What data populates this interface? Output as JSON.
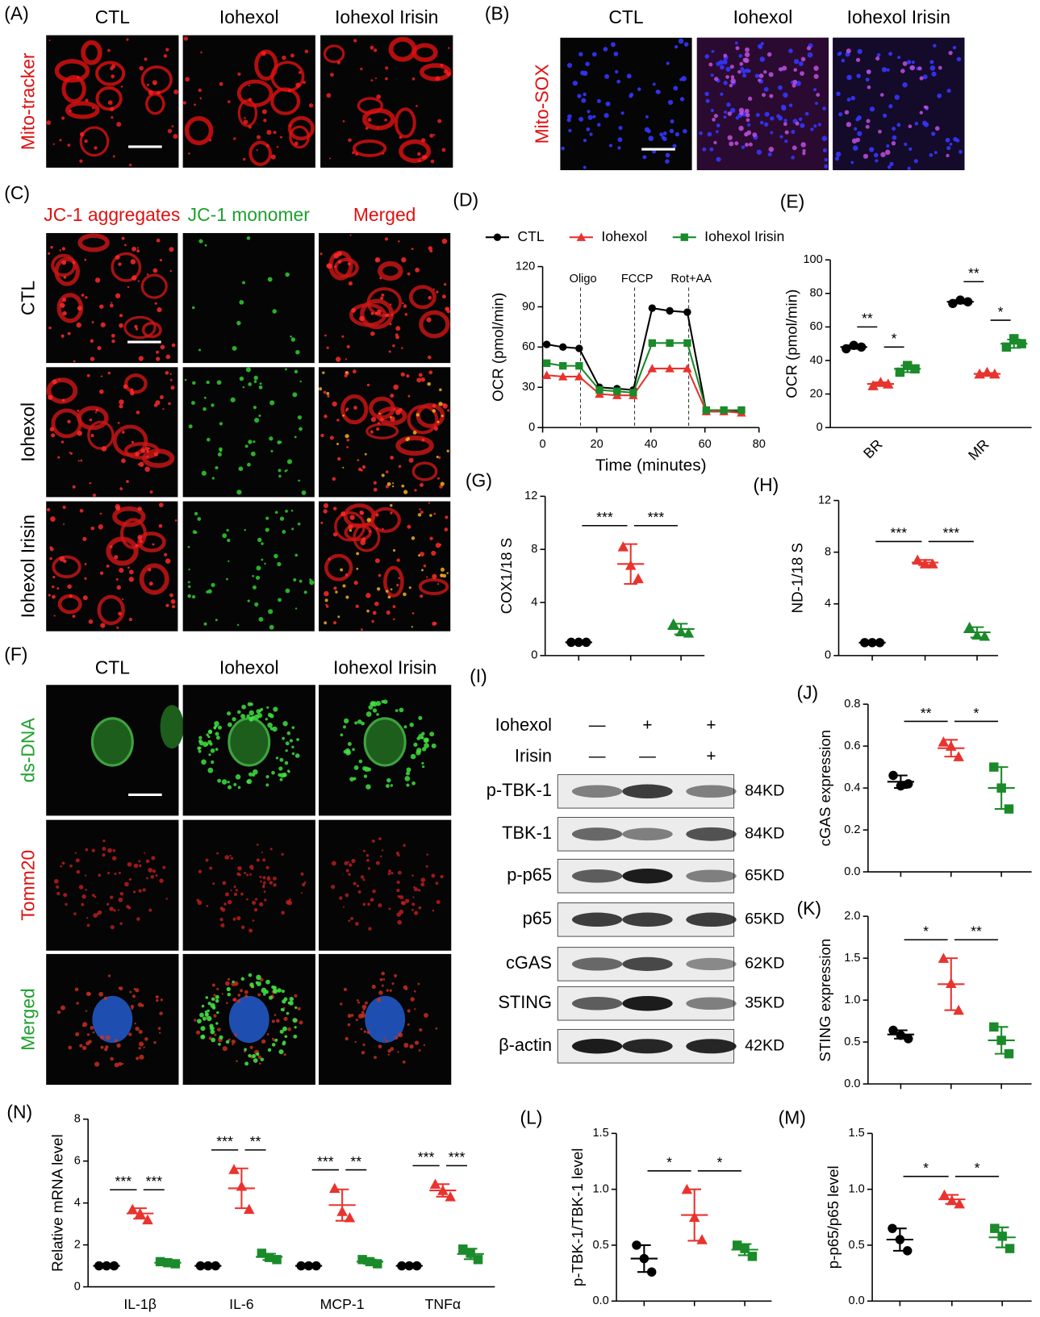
{
  "image_panels": [
    {
      "label": "(A)",
      "columns": [
        "CTL",
        "Iohexol",
        "Iohexol Irisin"
      ],
      "rows": [
        "Mito-tracker"
      ]
    },
    {
      "label": "(B)",
      "columns": [
        "CTL",
        "Iohexol",
        "Iohexol Irisin"
      ],
      "rows": [
        "Mito-SOX"
      ]
    },
    {
      "label": "(C)",
      "columns": [
        "JC-1 aggregates",
        "JC-1 monomer",
        "Merged"
      ],
      "rows": [
        "CTL",
        "Iohexol",
        "Iohexol Irisin"
      ]
    },
    {
      "label": "(F)",
      "columns": [
        "CTL",
        "Iohexol",
        "Iohexol Irisin"
      ],
      "rows": [
        "ds-DNA",
        "Tomm20",
        "Merged"
      ]
    }
  ],
  "western_blot": {
    "label": "(I)",
    "treatments": [
      {
        "name": "Iohexol",
        "lanes": [
          "—",
          "+",
          "+"
        ]
      },
      {
        "name": "Irisin",
        "lanes": [
          "—",
          "—",
          "+"
        ]
      }
    ],
    "bands": [
      {
        "name": "p-TBK-1",
        "size": "84KD"
      },
      {
        "name": "TBK-1",
        "size": "84KD"
      },
      {
        "name": "p-p65",
        "size": "65KD"
      },
      {
        "name": "p65",
        "size": "65KD"
      },
      {
        "name": "cGAS",
        "size": "62KD"
      },
      {
        "name": "STING",
        "size": "35KD"
      },
      {
        "name": "β-actin",
        "size": "42KD"
      }
    ]
  },
  "chart_data": [
    {
      "type": "line",
      "panel": "(D)",
      "xlabel": "Time (minutes)",
      "ylabel": "OCR (pmol/min)",
      "x": [
        1.5,
        7.5,
        13.5,
        21,
        27.5,
        33.5,
        40.5,
        47,
        53.5,
        60.5,
        67,
        73.5
      ],
      "xlim": [
        0,
        80
      ],
      "xticks": [
        0,
        20,
        40,
        60,
        80
      ],
      "ylim": [
        0,
        120
      ],
      "yticks": [
        0,
        30,
        60,
        90,
        120
      ],
      "annotations": [
        {
          "x": 14,
          "label": "Oligo"
        },
        {
          "x": 34,
          "label": "FCCP"
        },
        {
          "x": 54,
          "label": "Rot+AA"
        }
      ],
      "legend": "top",
      "series": [
        {
          "name": "CTL",
          "color": "#000000",
          "marker": "circle",
          "values": [
            62,
            60,
            59,
            30,
            29,
            28,
            89,
            87,
            86,
            12,
            12,
            12
          ]
        },
        {
          "name": "Iohexol",
          "color": "#e8332f",
          "marker": "triangle",
          "values": [
            39,
            38,
            38,
            25,
            24,
            24,
            44,
            44,
            44,
            12,
            12,
            11
          ]
        },
        {
          "name": "Iohexol Irisin",
          "color": "#1a8a2a",
          "marker": "square",
          "values": [
            48,
            46,
            46,
            28,
            27,
            26,
            63,
            63,
            63,
            13,
            13,
            13
          ]
        }
      ]
    },
    {
      "type": "dot",
      "panel": "(E)",
      "ylabel": "OCR (pmol/min)",
      "categories": [
        "BR",
        "MR"
      ],
      "ylim": [
        0,
        100
      ],
      "yticks": [
        0,
        20,
        40,
        60,
        80,
        100
      ],
      "significance": [
        [
          "**",
          "*"
        ],
        [
          "**",
          "*"
        ]
      ],
      "series": [
        {
          "color": "#000000",
          "marker": "circle",
          "values": [
            [
              47,
              49,
              48
            ],
            [
              74,
              76,
              75
            ]
          ],
          "mean": [
            48,
            75
          ],
          "sd": [
            1,
            1
          ]
        },
        {
          "color": "#e8332f",
          "marker": "triangle",
          "values": [
            [
              25,
              27,
              26
            ],
            [
              32,
              33,
              32
            ]
          ],
          "mean": [
            26,
            32
          ],
          "sd": [
            1,
            0.5
          ]
        },
        {
          "color": "#1a8a2a",
          "marker": "square",
          "values": [
            [
              33,
              37,
              35
            ],
            [
              48,
              53,
              50
            ]
          ],
          "mean": [
            35,
            50
          ],
          "sd": [
            2,
            2.5
          ]
        }
      ]
    },
    {
      "type": "dot",
      "panel": "(G)",
      "ylabel": "COX1/18 S",
      "label_font": "serif",
      "ylim": [
        0,
        12
      ],
      "yticks": [
        0,
        4,
        8,
        12
      ],
      "significance": [
        "***",
        "***"
      ],
      "series": [
        {
          "color": "#000000",
          "marker": "circle",
          "values": [
            1,
            1,
            1
          ],
          "mean": 1,
          "sd": 0
        },
        {
          "color": "#e8332f",
          "marker": "triangle",
          "values": [
            8.2,
            6.8,
            5.8
          ],
          "mean": 6.9,
          "sd": 1.5
        },
        {
          "color": "#1a8a2a",
          "marker": "triangle",
          "values": [
            2.4,
            1.8,
            1.7
          ],
          "mean": 2,
          "sd": 0.4
        }
      ]
    },
    {
      "type": "dot",
      "panel": "(H)",
      "ylabel": "ND-1/18 S",
      "label_font": "serif",
      "ylim": [
        0,
        12
      ],
      "yticks": [
        0,
        4,
        8,
        12
      ],
      "significance": [
        "***",
        "***"
      ],
      "series": [
        {
          "color": "#000000",
          "marker": "circle",
          "values": [
            1,
            1,
            1
          ],
          "mean": 1,
          "sd": 0
        },
        {
          "color": "#e8332f",
          "marker": "triangle",
          "values": [
            7.4,
            7.1,
            7.1
          ],
          "mean": 7.2,
          "sd": 0.2
        },
        {
          "color": "#1a8a2a",
          "marker": "triangle",
          "values": [
            2.2,
            1.6,
            1.5
          ],
          "mean": 1.8,
          "sd": 0.4
        }
      ]
    },
    {
      "type": "dot",
      "panel": "(J)",
      "ylabel": "cGAS expression",
      "ylim": [
        0,
        0.8
      ],
      "yticks": [
        {
          "value": 0,
          "label": "0.0"
        },
        0.2,
        0.4,
        0.6,
        0.8
      ],
      "significance": [
        "**",
        "*"
      ],
      "series": [
        {
          "color": "#000000",
          "marker": "circle",
          "values": [
            0.46,
            0.41,
            0.42
          ],
          "mean": 0.43,
          "sd": 0.03
        },
        {
          "color": "#e8332f",
          "marker": "triangle",
          "values": [
            0.62,
            0.6,
            0.55
          ],
          "mean": 0.59,
          "sd": 0.04
        },
        {
          "color": "#1a8a2a",
          "marker": "square",
          "values": [
            0.5,
            0.4,
            0.3
          ],
          "mean": 0.4,
          "sd": 0.1
        }
      ]
    },
    {
      "type": "dot",
      "panel": "(K)",
      "ylabel": "STING expression",
      "ylim": [
        0,
        2
      ],
      "yticks": [
        {
          "value": 0,
          "label": "0.0"
        },
        0.5,
        {
          "value": 1,
          "label": "1.0"
        },
        1.5,
        {
          "value": 2,
          "label": "2.0"
        }
      ],
      "significance": [
        "*",
        "**"
      ],
      "series": [
        {
          "color": "#000000",
          "marker": "circle",
          "values": [
            0.64,
            0.58,
            0.54
          ],
          "mean": 0.59,
          "sd": 0.05
        },
        {
          "color": "#e8332f",
          "marker": "triangle",
          "values": [
            1.5,
            1.2,
            0.88
          ],
          "mean": 1.19,
          "sd": 0.31
        },
        {
          "color": "#1a8a2a",
          "marker": "square",
          "values": [
            0.68,
            0.52,
            0.36
          ],
          "mean": 0.52,
          "sd": 0.16
        }
      ]
    },
    {
      "type": "dot",
      "panel": "(N)",
      "ylabel": "Relative mRNA level",
      "label_font": "serif",
      "categories": [
        "IL-1β",
        "IL-6",
        "MCP-1",
        "TNFα"
      ],
      "ylim": [
        0,
        8
      ],
      "yticks": [
        0,
        2,
        4,
        6,
        8
      ],
      "significance": [
        [
          "***",
          "***"
        ],
        [
          "***",
          "**"
        ],
        [
          "***",
          "**"
        ],
        [
          "***",
          "***"
        ]
      ],
      "series": [
        {
          "color": "#000000",
          "marker": "circle",
          "values": [
            [
              1,
              1,
              1
            ],
            [
              1,
              1,
              1
            ],
            [
              1,
              1,
              1
            ],
            [
              1,
              1,
              1
            ]
          ],
          "mean": [
            1,
            1,
            1,
            1
          ],
          "sd": [
            0,
            0,
            0,
            0
          ]
        },
        {
          "color": "#e8332f",
          "marker": "triangle",
          "values": [
            [
              3.7,
              3.5,
              3.2
            ],
            [
              5.6,
              4.8,
              3.7
            ],
            [
              4.7,
              3.6,
              3.3
            ],
            [
              4.9,
              4.6,
              4.3
            ]
          ],
          "mean": [
            3.5,
            4.7,
            3.9,
            4.6
          ],
          "sd": [
            0.25,
            0.95,
            0.75,
            0.3
          ]
        },
        {
          "color": "#1a8a2a",
          "marker": "square",
          "values": [
            [
              1.2,
              1.15,
              1.1
            ],
            [
              1.6,
              1.4,
              1.3
            ],
            [
              1.3,
              1.2,
              1.1
            ],
            [
              1.8,
              1.6,
              1.3
            ]
          ],
          "mean": [
            1.15,
            1.43,
            1.2,
            1.57
          ],
          "sd": [
            0.05,
            0.15,
            0.1,
            0.25
          ]
        }
      ]
    },
    {
      "type": "dot",
      "panel": "(L)",
      "ylabel": "p-TBK-1/TBK-1 level",
      "ylim": [
        0,
        1.5
      ],
      "yticks": [
        {
          "value": 0,
          "label": "0.0"
        },
        0.5,
        {
          "value": 1,
          "label": "1.0"
        },
        1.5
      ],
      "significance": [
        "*",
        "*"
      ],
      "series": [
        {
          "color": "#000000",
          "marker": "circle",
          "values": [
            0.5,
            0.38,
            0.26
          ],
          "mean": 0.38,
          "sd": 0.12
        },
        {
          "color": "#e8332f",
          "marker": "triangle",
          "values": [
            1.0,
            0.75,
            0.55
          ],
          "mean": 0.77,
          "sd": 0.23
        },
        {
          "color": "#1a8a2a",
          "marker": "square",
          "values": [
            0.5,
            0.47,
            0.4
          ],
          "mean": 0.46,
          "sd": 0.05
        }
      ]
    },
    {
      "type": "dot",
      "panel": "(M)",
      "ylabel": "p-p65/p65 level",
      "ylim": [
        0,
        1.5
      ],
      "yticks": [
        {
          "value": 0,
          "label": "0.0"
        },
        0.5,
        {
          "value": 1,
          "label": "1.0"
        },
        1.5
      ],
      "significance": [
        "*",
        "*"
      ],
      "series": [
        {
          "color": "#000000",
          "marker": "circle",
          "values": [
            0.65,
            0.55,
            0.45
          ],
          "mean": 0.55,
          "sd": 0.1
        },
        {
          "color": "#e8332f",
          "marker": "triangle",
          "values": [
            0.95,
            0.9,
            0.87
          ],
          "mean": 0.91,
          "sd": 0.04
        },
        {
          "color": "#1a8a2a",
          "marker": "square",
          "values": [
            0.65,
            0.58,
            0.47
          ],
          "mean": 0.57,
          "sd": 0.09
        }
      ]
    }
  ]
}
